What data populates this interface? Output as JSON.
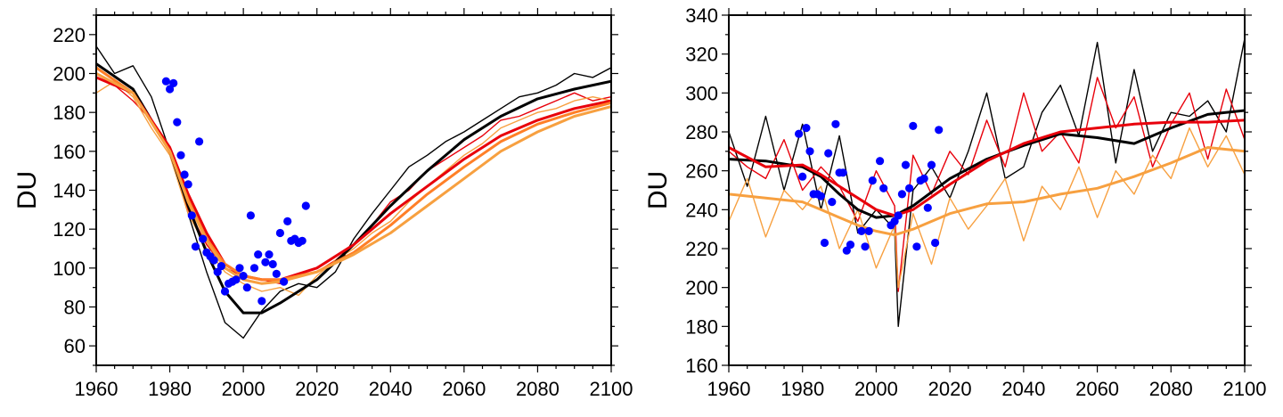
{
  "chart_data": [
    {
      "type": "line",
      "ylabel": "DU",
      "xlim": [
        1960,
        2100
      ],
      "ylim": [
        50,
        230
      ],
      "xticks": [
        1960,
        1980,
        2000,
        2020,
        2040,
        2060,
        2080,
        2100
      ],
      "yticks": [
        60,
        80,
        100,
        120,
        140,
        160,
        180,
        200,
        220
      ],
      "grid": false,
      "colors": {
        "black": "#000000",
        "red": "#e8000b",
        "orange": "#f7a040",
        "darkorange": "#ff7f27",
        "obs": "#0000ff"
      },
      "series": [
        {
          "kind": "raw",
          "color": "black",
          "x": [
            1960,
            1965,
            1970,
            1975,
            1980,
            1985,
            1990,
            1995,
            2000,
            2005,
            2010,
            2015,
            2020,
            2025,
            2030,
            2035,
            2040,
            2045,
            2050,
            2055,
            2060,
            2065,
            2070,
            2075,
            2080,
            2085,
            2090,
            2095,
            2100
          ],
          "y": [
            214,
            200,
            204,
            188,
            160,
            128,
            98,
            72,
            64,
            78,
            88,
            92,
            90,
            98,
            115,
            128,
            140,
            152,
            158,
            165,
            170,
            176,
            182,
            188,
            190,
            194,
            200,
            198,
            203
          ]
        },
        {
          "kind": "raw",
          "color": "red",
          "x": [
            1960,
            1965,
            1970,
            1975,
            1980,
            1985,
            1990,
            1995,
            2000,
            2005,
            2010,
            2015,
            2020,
            2025,
            2030,
            2035,
            2040,
            2045,
            2050,
            2055,
            2060,
            2065,
            2070,
            2075,
            2080,
            2085,
            2090,
            2095,
            2100
          ],
          "y": [
            198,
            194,
            186,
            176,
            160,
            130,
            112,
            100,
            96,
            94,
            92,
            96,
            98,
            104,
            112,
            122,
            134,
            140,
            150,
            156,
            162,
            168,
            176,
            178,
            182,
            186,
            190,
            186,
            188
          ]
        },
        {
          "kind": "raw",
          "color": "orange",
          "x": [
            1960,
            1965,
            1970,
            1975,
            1980,
            1985,
            1990,
            1995,
            2000,
            2005,
            2010,
            2015,
            2020,
            2025,
            2030,
            2035,
            2040,
            2045,
            2050,
            2055,
            2060,
            2065,
            2070,
            2075,
            2080,
            2085,
            2090,
            2095,
            2100
          ],
          "y": [
            190,
            196,
            188,
            172,
            158,
            128,
            110,
            98,
            92,
            88,
            90,
            86,
            96,
            104,
            110,
            118,
            124,
            134,
            142,
            150,
            158,
            164,
            172,
            176,
            180,
            182,
            186,
            188,
            186
          ]
        },
        {
          "kind": "smooth",
          "color": "black",
          "x": [
            1960,
            1970,
            1980,
            1985,
            1990,
            1995,
            2000,
            2005,
            2010,
            2020,
            2030,
            2040,
            2050,
            2060,
            2070,
            2080,
            2090,
            2100
          ],
          "y": [
            205,
            192,
            160,
            132,
            108,
            88,
            77,
            77,
            82,
            94,
            112,
            132,
            150,
            166,
            178,
            187,
            192,
            196
          ]
        },
        {
          "kind": "smooth",
          "color": "red",
          "x": [
            1960,
            1970,
            1980,
            1985,
            1990,
            1995,
            2000,
            2005,
            2010,
            2020,
            2030,
            2040,
            2050,
            2060,
            2070,
            2080,
            2090,
            2100
          ],
          "y": [
            198,
            190,
            162,
            138,
            118,
            102,
            96,
            94,
            94,
            100,
            112,
            128,
            142,
            156,
            168,
            176,
            182,
            186
          ]
        },
        {
          "kind": "smooth",
          "color": "darkorange",
          "x": [
            1960,
            1970,
            1980,
            1985,
            1990,
            1995,
            2000,
            2005,
            2010,
            2020,
            2030,
            2040,
            2050,
            2060,
            2070,
            2080,
            2090,
            2100
          ],
          "y": [
            203,
            190,
            160,
            135,
            115,
            102,
            96,
            94,
            94,
            98,
            108,
            122,
            138,
            152,
            165,
            174,
            180,
            185
          ]
        },
        {
          "kind": "smooth",
          "color": "orange",
          "x": [
            1960,
            1970,
            1980,
            1985,
            1990,
            1995,
            2000,
            2005,
            2010,
            2020,
            2030,
            2040,
            2050,
            2060,
            2070,
            2080,
            2090,
            2100
          ],
          "y": [
            200,
            190,
            160,
            134,
            114,
            100,
            94,
            92,
            93,
            98,
            107,
            118,
            132,
            146,
            160,
            170,
            178,
            183
          ]
        },
        {
          "kind": "obs",
          "color": "obs",
          "x": [
            1979,
            1980,
            1981,
            1982,
            1983,
            1984,
            1985,
            1986,
            1987,
            1988,
            1989,
            1990,
            1991,
            1992,
            1993,
            1994,
            1995,
            1996,
            1997,
            1998,
            1999,
            2000,
            2001,
            2002,
            2003,
            2004,
            2005,
            2006,
            2007,
            2008,
            2009,
            2010,
            2011,
            2012,
            2013,
            2014,
            2015,
            2016,
            2017
          ],
          "y": [
            196,
            192,
            195,
            175,
            158,
            148,
            143,
            127,
            111,
            165,
            115,
            108,
            106,
            104,
            98,
            101,
            88,
            92,
            93,
            94,
            100,
            96,
            90,
            127,
            100,
            107,
            83,
            103,
            107,
            102,
            97,
            118,
            93,
            124,
            114,
            115,
            113,
            114,
            132
          ]
        }
      ]
    },
    {
      "type": "line",
      "ylabel": "DU",
      "xlim": [
        1960,
        2100
      ],
      "ylim": [
        160,
        340
      ],
      "xticks": [
        1960,
        1980,
        2000,
        2020,
        2040,
        2060,
        2080,
        2100
      ],
      "yticks": [
        160,
        180,
        200,
        220,
        240,
        260,
        280,
        300,
        320,
        340
      ],
      "grid": false,
      "colors": {
        "black": "#000000",
        "red": "#e8000b",
        "orange": "#f7a040",
        "darkorange": "#ff7f27",
        "obs": "#0000ff"
      },
      "series": [
        {
          "kind": "raw",
          "color": "black",
          "x": [
            1960,
            1965,
            1970,
            1975,
            1980,
            1985,
            1990,
            1995,
            2000,
            2005,
            2006,
            2010,
            2015,
            2020,
            2025,
            2030,
            2035,
            2040,
            2045,
            2050,
            2055,
            2060,
            2065,
            2070,
            2075,
            2080,
            2085,
            2090,
            2095,
            2100
          ],
          "y": [
            280,
            252,
            288,
            250,
            284,
            240,
            278,
            228,
            240,
            230,
            180,
            250,
            262,
            246,
            270,
            300,
            256,
            262,
            290,
            304,
            278,
            326,
            264,
            312,
            270,
            290,
            288,
            296,
            280,
            328
          ]
        },
        {
          "kind": "raw",
          "color": "red",
          "x": [
            1960,
            1965,
            1970,
            1975,
            1980,
            1985,
            1990,
            1995,
            2000,
            2005,
            2006,
            2010,
            2015,
            2020,
            2025,
            2030,
            2035,
            2040,
            2045,
            2050,
            2055,
            2060,
            2065,
            2070,
            2075,
            2080,
            2085,
            2090,
            2095,
            2100
          ],
          "y": [
            270,
            262,
            256,
            276,
            250,
            262,
            252,
            234,
            260,
            242,
            198,
            268,
            248,
            270,
            258,
            286,
            262,
            300,
            270,
            280,
            264,
            308,
            282,
            298,
            262,
            284,
            300,
            266,
            302,
            276
          ]
        },
        {
          "kind": "raw",
          "color": "orange",
          "x": [
            1960,
            1965,
            1970,
            1975,
            1980,
            1985,
            1990,
            1995,
            2000,
            2005,
            2006,
            2010,
            2015,
            2020,
            2025,
            2030,
            2035,
            2040,
            2045,
            2050,
            2055,
            2060,
            2065,
            2070,
            2075,
            2080,
            2085,
            2090,
            2095,
            2100
          ],
          "y": [
            234,
            256,
            226,
            250,
            240,
            252,
            220,
            240,
            210,
            232,
            200,
            238,
            212,
            246,
            230,
            242,
            256,
            224,
            252,
            240,
            262,
            236,
            260,
            248,
            268,
            256,
            282,
            262,
            278,
            258
          ]
        },
        {
          "kind": "smooth",
          "color": "black",
          "x": [
            1960,
            1970,
            1980,
            1985,
            1990,
            1995,
            2000,
            2005,
            2010,
            2020,
            2030,
            2040,
            2050,
            2060,
            2070,
            2080,
            2090,
            2100
          ],
          "y": [
            266,
            265,
            262,
            257,
            248,
            240,
            236,
            237,
            242,
            256,
            266,
            273,
            279,
            277,
            274,
            282,
            289,
            291
          ]
        },
        {
          "kind": "smooth",
          "color": "red",
          "x": [
            1960,
            1970,
            1980,
            1985,
            1990,
            1995,
            2000,
            2005,
            2010,
            2020,
            2030,
            2040,
            2050,
            2060,
            2070,
            2080,
            2090,
            2100
          ],
          "y": [
            272,
            262,
            263,
            258,
            252,
            246,
            240,
            237,
            240,
            253,
            265,
            274,
            280,
            282,
            284,
            285,
            285,
            286
          ]
        },
        {
          "kind": "smooth",
          "color": "orange",
          "x": [
            1960,
            1970,
            1980,
            1985,
            1990,
            1995,
            2000,
            2005,
            2010,
            2020,
            2030,
            2040,
            2050,
            2060,
            2070,
            2080,
            2090,
            2100
          ],
          "y": [
            248,
            246,
            244,
            240,
            236,
            232,
            229,
            227,
            230,
            238,
            243,
            244,
            248,
            251,
            257,
            264,
            272,
            270
          ]
        },
        {
          "kind": "obs",
          "color": "obs",
          "x": [
            1979,
            1980,
            1981,
            1982,
            1983,
            1984,
            1985,
            1986,
            1987,
            1988,
            1989,
            1990,
            1991,
            1992,
            1993,
            1996,
            1997,
            1998,
            1999,
            2001,
            2002,
            2004,
            2005,
            2006,
            2007,
            2008,
            2009,
            2010,
            2011,
            2012,
            2013,
            2014,
            2015,
            2016,
            2017
          ],
          "y": [
            279,
            257,
            282,
            270,
            248,
            248,
            247,
            223,
            269,
            244,
            284,
            259,
            259,
            219,
            222,
            229,
            221,
            229,
            255,
            265,
            251,
            232,
            234,
            237,
            248,
            263,
            251,
            283,
            221,
            255,
            256,
            241,
            263,
            223,
            281
          ]
        }
      ]
    }
  ]
}
